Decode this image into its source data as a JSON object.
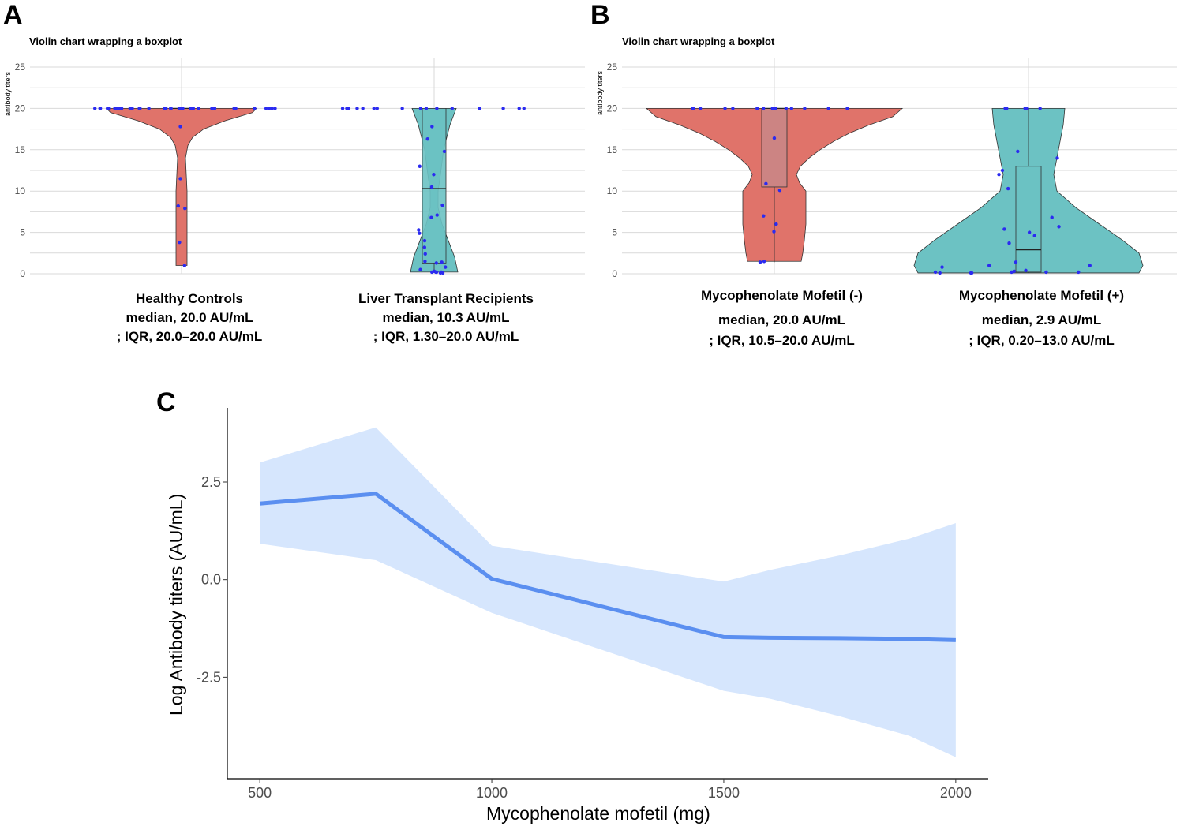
{
  "panels": {
    "A": {
      "letter": "A",
      "title": "Violin chart wrapping a boxplot",
      "ylabel": "antibody titers",
      "yticks": [
        0,
        5,
        10,
        15,
        20,
        25
      ],
      "groups": [
        {
          "name": "Healthy Controls",
          "median_text": "median, 20.0 AU/mL",
          "iqr_text": "; IQR, 20.0–20.0 AU/mL"
        },
        {
          "name": "Liver Transplant Recipients",
          "median_text": "median, 10.3 AU/mL",
          "iqr_text": "; IQR, 1.30–20.0 AU/mL"
        }
      ]
    },
    "B": {
      "letter": "B",
      "title": "Violin chart wrapping a boxplot",
      "ylabel": "antibody titers",
      "yticks": [
        0,
        5,
        10,
        15,
        20,
        25
      ],
      "groups": [
        {
          "name": "Mycophenolate Mofetil (-)",
          "median_text": "median, 20.0 AU/mL",
          "iqr_text": "; IQR, 10.5–20.0 AU/mL"
        },
        {
          "name": "Mycophenolate Mofetil (+)",
          "median_text": "median, 2.9 AU/mL",
          "iqr_text": "; IQR, 0.20–13.0 AU/mL"
        }
      ]
    },
    "C": {
      "letter": "C",
      "xlabel": "Mycophenolate mofetil (mg)",
      "ylabel": "Log Antibody titers (AU/mL)",
      "xticks": [
        500,
        1000,
        1500,
        2000
      ],
      "yticks": [
        -2.5,
        0.0,
        2.5
      ],
      "ytick_labels": [
        "-2.5",
        "0.0",
        "2.5"
      ]
    }
  },
  "colors": {
    "violin_left": "#e0736a",
    "violin_right": "#6cc2c3",
    "points": "#2b2bf0",
    "line": "#5b8ff0",
    "ribbon": "#d6e6fd",
    "grid": "#d9d9d9"
  },
  "chart_data": [
    {
      "type": "violin",
      "panel": "A",
      "title": "Violin chart wrapping a boxplot",
      "ylabel": "antibody titers",
      "categories": [
        "Healthy Controls",
        "Liver Transplant Recipients"
      ],
      "ylim": [
        0,
        25
      ],
      "grid": true,
      "summary": [
        {
          "median": 20.0,
          "q1": 20.0,
          "q3": 20.0
        },
        {
          "median": 10.3,
          "q1": 1.3,
          "q3": 20.0
        }
      ],
      "points": [
        [
          20,
          20,
          20,
          20,
          20,
          20,
          20,
          20,
          20,
          20,
          20,
          20,
          20,
          20,
          20,
          20,
          20,
          20,
          20,
          20,
          20,
          20,
          20,
          20,
          20,
          20,
          20,
          20,
          20,
          20,
          20,
          20,
          20,
          20,
          20,
          20,
          20,
          20,
          20,
          20,
          17.8,
          11.5,
          8.2,
          7.9,
          3.8,
          1.0
        ],
        [
          20,
          20,
          20,
          20,
          20,
          20,
          20,
          20,
          20,
          20,
          20,
          20,
          20,
          20,
          20,
          20.0,
          17.8,
          16.3,
          14.8,
          13.0,
          12.0,
          10.5,
          8.3,
          7.1,
          6.8,
          5.3,
          4.9,
          4.0,
          3.2,
          2.4,
          1.5,
          1.4,
          1.3,
          0.8,
          0.5,
          0.3,
          0.2,
          0.2,
          0.2,
          0.2,
          0.1,
          0.1
        ]
      ]
    },
    {
      "type": "violin",
      "panel": "B",
      "title": "Violin chart wrapping a boxplot",
      "ylabel": "antibody titers",
      "categories": [
        "Mycophenolate Mofetil (-)",
        "Mycophenolate Mofetil (+)"
      ],
      "ylim": [
        0,
        25
      ],
      "grid": true,
      "summary": [
        {
          "median": 20.0,
          "q1": 10.5,
          "q3": 20.0
        },
        {
          "median": 2.9,
          "q1": 0.2,
          "q3": 13.0
        }
      ],
      "points": [
        [
          20,
          20,
          20,
          20,
          20,
          20,
          20,
          20,
          20,
          20,
          20,
          20,
          20,
          20,
          16.4,
          10.9,
          10.1,
          7.0,
          6.0,
          5.1,
          1.5,
          1.4
        ],
        [
          20,
          20,
          20,
          20,
          20,
          14.8,
          14.0,
          12.5,
          12.0,
          10.3,
          6.8,
          5.7,
          5.4,
          5.0,
          4.6,
          3.7,
          1.4,
          1.0,
          1.0,
          0.8,
          0.4,
          0.3,
          0.2,
          0.2,
          0.2,
          0.2,
          0.1,
          0.1,
          0.1
        ]
      ]
    },
    {
      "type": "line",
      "panel": "C",
      "xlabel": "Mycophenolate mofetil (mg)",
      "ylabel": "Log Antibody titers (AU/mL)",
      "x": [
        500,
        750,
        1000,
        1500,
        1600,
        1750,
        1900,
        2000
      ],
      "series": [
        {
          "values": [
            1.95,
            2.2,
            0.02,
            -1.47,
            -1.49,
            -1.5,
            -1.52,
            -1.55
          ],
          "lower": [
            0.92,
            0.5,
            -0.85,
            -2.85,
            -3.05,
            -3.5,
            -4.0,
            -4.55
          ],
          "upper": [
            3.0,
            3.9,
            0.87,
            -0.05,
            0.25,
            0.62,
            1.05,
            1.45
          ]
        }
      ],
      "xlim": [
        430,
        2070
      ],
      "ylim": [
        -5.1,
        4.4
      ],
      "grid": false
    }
  ]
}
